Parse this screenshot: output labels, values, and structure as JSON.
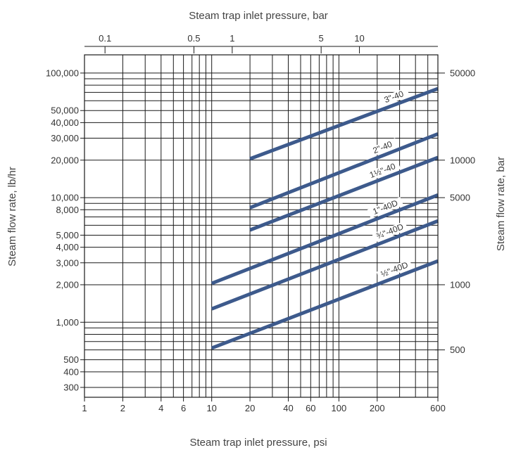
{
  "chart_data": {
    "type": "line",
    "title": "",
    "xlabel": "Steam trap inlet pressure, psi",
    "ylabel": "Steam flow rate, lb/hr",
    "x2label": "Steam trap inlet pressure, bar",
    "y2label": "Steam flow rate, bar",
    "xscale": "log",
    "yscale": "log",
    "xlim": [
      1,
      600
    ],
    "ylim": [
      250,
      140000
    ],
    "grid": true,
    "x_ticks": [
      {
        "value": 1,
        "label": "1"
      },
      {
        "value": 2,
        "label": "2"
      },
      {
        "value": 4,
        "label": "4"
      },
      {
        "value": 6,
        "label": "6"
      },
      {
        "value": 10,
        "label": "10"
      },
      {
        "value": 20,
        "label": "20"
      },
      {
        "value": 40,
        "label": "40"
      },
      {
        "value": 60,
        "label": "60"
      },
      {
        "value": 100,
        "label": "100"
      },
      {
        "value": 200,
        "label": "200"
      },
      {
        "value": 600,
        "label": "600"
      }
    ],
    "y_ticks": [
      {
        "value": 300,
        "label": "300"
      },
      {
        "value": 400,
        "label": "400"
      },
      {
        "value": 500,
        "label": "500"
      },
      {
        "value": 1000,
        "label": "1,000"
      },
      {
        "value": 2000,
        "label": "2,000"
      },
      {
        "value": 3000,
        "label": "3,000"
      },
      {
        "value": 4000,
        "label": "4,000"
      },
      {
        "value": 5000,
        "label": "5,000"
      },
      {
        "value": 8000,
        "label": "8,000"
      },
      {
        "value": 10000,
        "label": "10,000"
      },
      {
        "value": 20000,
        "label": "20,000"
      },
      {
        "value": 30000,
        "label": "30,000"
      },
      {
        "value": 40000,
        "label": "40,000"
      },
      {
        "value": 50000,
        "label": "50,000"
      },
      {
        "value": 100000,
        "label": "100,000"
      }
    ],
    "x_grid": [
      1,
      2,
      3,
      4,
      5,
      6,
      7,
      8,
      9,
      10,
      20,
      30,
      40,
      50,
      60,
      70,
      80,
      90,
      100,
      200,
      300,
      400,
      500,
      600
    ],
    "y_grid": [
      300,
      400,
      500,
      600,
      700,
      800,
      900,
      1000,
      2000,
      3000,
      4000,
      5000,
      6000,
      7000,
      8000,
      9000,
      10000,
      20000,
      30000,
      40000,
      50000,
      60000,
      70000,
      80000,
      90000,
      100000
    ],
    "x2_ticks": [
      {
        "psi": 1.45,
        "label": "0.1"
      },
      {
        "psi": 7.25,
        "label": "0.5"
      },
      {
        "psi": 14.5,
        "label": "1"
      },
      {
        "psi": 72.5,
        "label": "5"
      },
      {
        "psi": 145,
        "label": "10"
      }
    ],
    "y2_ticks": [
      {
        "lbhr": 600,
        "label": "500"
      },
      {
        "lbhr": 2000,
        "label": "1000"
      },
      {
        "lbhr": 10000,
        "label": "5000"
      },
      {
        "lbhr": 20000,
        "label": "10000"
      },
      {
        "lbhr": 100000,
        "label": "50000"
      }
    ],
    "series": [
      {
        "name": "3\"-40",
        "x": [
          20,
          600
        ],
        "y": [
          20500,
          75000
        ],
        "label_at": 0.78
      },
      {
        "name": "2\"-40",
        "x": [
          20,
          600
        ],
        "y": [
          8300,
          32500
        ],
        "label_at": 0.72
      },
      {
        "name": "1½\"-40",
        "x": [
          20,
          600
        ],
        "y": [
          5500,
          21000
        ],
        "label_at": 0.72
      },
      {
        "name": "1\"-40D",
        "x": [
          10,
          600
        ],
        "y": [
          2050,
          10500
        ],
        "label_at": 0.78
      },
      {
        "name": "¾\"-40D",
        "x": [
          10,
          600
        ],
        "y": [
          1280,
          6500
        ],
        "label_at": 0.8
      },
      {
        "name": "½\"-40D",
        "x": [
          10,
          600
        ],
        "y": [
          620,
          3100
        ],
        "label_at": 0.82
      }
    ],
    "colors": {
      "series": "#3d5a8c",
      "grid": "#1a1a1a",
      "text": "#333333"
    }
  }
}
